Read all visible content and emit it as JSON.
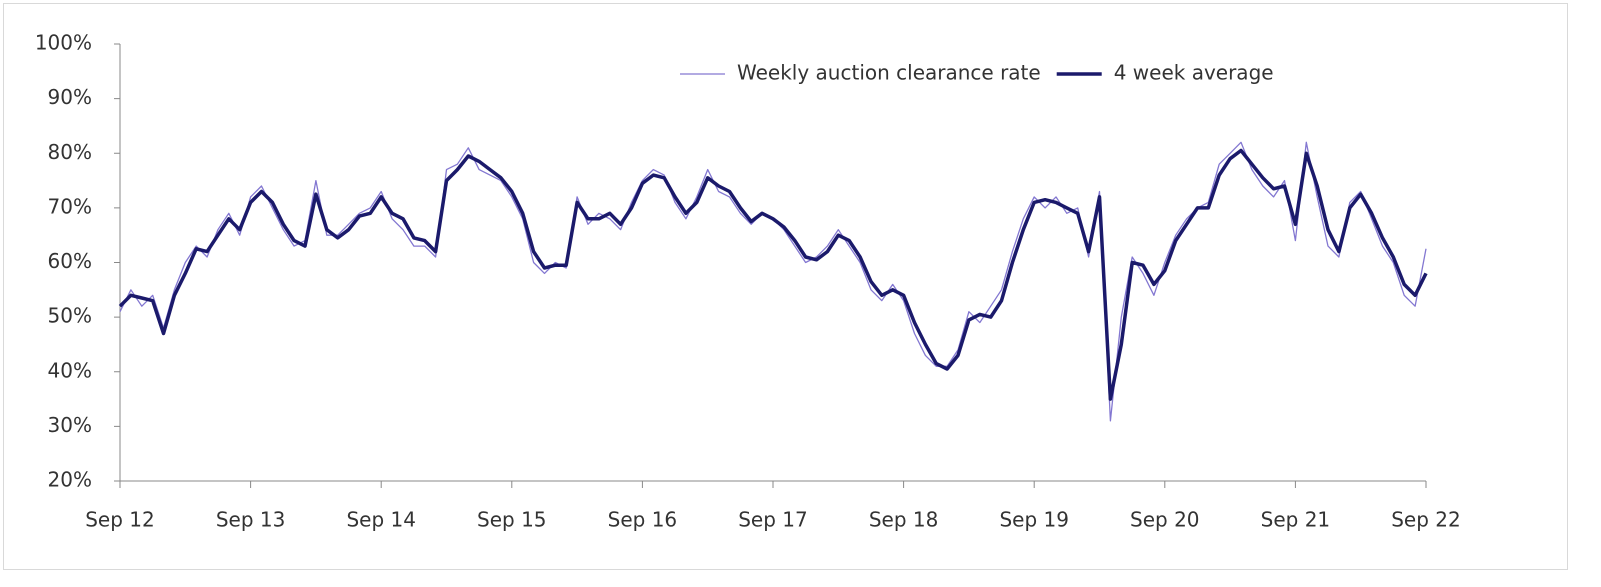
{
  "chart_data": {
    "type": "line",
    "categories": [
      "Sep 12",
      null,
      null,
      null,
      null,
      null,
      null,
      null,
      null,
      null,
      null,
      null,
      "Sep 13",
      null,
      null,
      null,
      null,
      null,
      null,
      null,
      null,
      null,
      null,
      null,
      "Sep 14",
      null,
      null,
      null,
      null,
      null,
      null,
      null,
      null,
      null,
      null,
      null,
      "Sep 15",
      null,
      null,
      null,
      null,
      null,
      null,
      null,
      null,
      null,
      null,
      null,
      "Sep 16",
      null,
      null,
      null,
      null,
      null,
      null,
      null,
      null,
      null,
      null,
      null,
      "Sep 17",
      null,
      null,
      null,
      null,
      null,
      null,
      null,
      null,
      null,
      null,
      null,
      "Sep 18",
      null,
      null,
      null,
      null,
      null,
      null,
      null,
      null,
      null,
      null,
      null,
      "Sep 19",
      null,
      null,
      null,
      null,
      null,
      null,
      null,
      null,
      null,
      null,
      null,
      "Sep 20",
      null,
      null,
      null,
      null,
      null,
      null,
      null,
      null,
      null,
      null,
      null,
      "Sep 21",
      null,
      null,
      null,
      null,
      null,
      null,
      null,
      null,
      null,
      null,
      null,
      "Sep 22"
    ],
    "series": [
      {
        "name": "Weekly auction clearance rate",
        "color": "#8377d1",
        "width": 1.3,
        "values": [
          51,
          55,
          52,
          54,
          48,
          55,
          60,
          63,
          61,
          66,
          69,
          65,
          72,
          74,
          70,
          66,
          63,
          64,
          75,
          65,
          65,
          67,
          69,
          70,
          73,
          68,
          66,
          63,
          63,
          61,
          77,
          78,
          81,
          77,
          76,
          75,
          72,
          68,
          60,
          58,
          60,
          59,
          72,
          67,
          69,
          68,
          66,
          71,
          75,
          77,
          76,
          71,
          68,
          72,
          77,
          73,
          72,
          69,
          67,
          69,
          68,
          66,
          63,
          60,
          61,
          63,
          66,
          63,
          60,
          55,
          53,
          56,
          53,
          47,
          43,
          41,
          41,
          44,
          51,
          49,
          52,
          55,
          62,
          68,
          72,
          70,
          72,
          69,
          70,
          61,
          73,
          31,
          50,
          61,
          58,
          54,
          60,
          65,
          68,
          70,
          71,
          78,
          80,
          82,
          77,
          74,
          72,
          75,
          64,
          82,
          72,
          63,
          61,
          71,
          73,
          68,
          63,
          60,
          54,
          52,
          62.5
        ]
      },
      {
        "name": "4 week average",
        "color": "#1b1a6b",
        "width": 3.5,
        "values": [
          52,
          54,
          53.5,
          53,
          47,
          54,
          58,
          62.5,
          62,
          65,
          68,
          66,
          71,
          73,
          71,
          67,
          64,
          63,
          72.5,
          66,
          64.5,
          66,
          68.5,
          69,
          72,
          69,
          68,
          64.5,
          64,
          62,
          75,
          77,
          79.5,
          78.5,
          77,
          75.5,
          73,
          69,
          62,
          59,
          59.5,
          59.5,
          71,
          68,
          68,
          69,
          67,
          70,
          74.5,
          76,
          75.5,
          72,
          69,
          71,
          75.5,
          74,
          73,
          70,
          67.5,
          69,
          68,
          66.5,
          64,
          61,
          60.5,
          62,
          65,
          64,
          61,
          56.5,
          54,
          55,
          54,
          49,
          45,
          41.5,
          40.5,
          43,
          49.5,
          50.5,
          50,
          53,
          60,
          66,
          71,
          71.5,
          71,
          70,
          69,
          62,
          72,
          35,
          45,
          60,
          59.5,
          56,
          58.5,
          64,
          67,
          70,
          70,
          76,
          79,
          80.5,
          78,
          75.5,
          73.5,
          74,
          67,
          80,
          74,
          66,
          62,
          70,
          72.5,
          69,
          64.5,
          61,
          56,
          54,
          58
        ]
      }
    ],
    "ylim": [
      20,
      100
    ],
    "yticks": [
      {
        "value": 20,
        "label": "20%"
      },
      {
        "value": 30,
        "label": "30%"
      },
      {
        "value": 40,
        "label": "40%"
      },
      {
        "value": 50,
        "label": "50%"
      },
      {
        "value": 60,
        "label": "60%"
      },
      {
        "value": 70,
        "label": "70%"
      },
      {
        "value": 80,
        "label": "80%"
      },
      {
        "value": 90,
        "label": "90%"
      },
      {
        "value": 100,
        "label": "100%"
      }
    ],
    "grid": false,
    "legend": "top-right"
  }
}
